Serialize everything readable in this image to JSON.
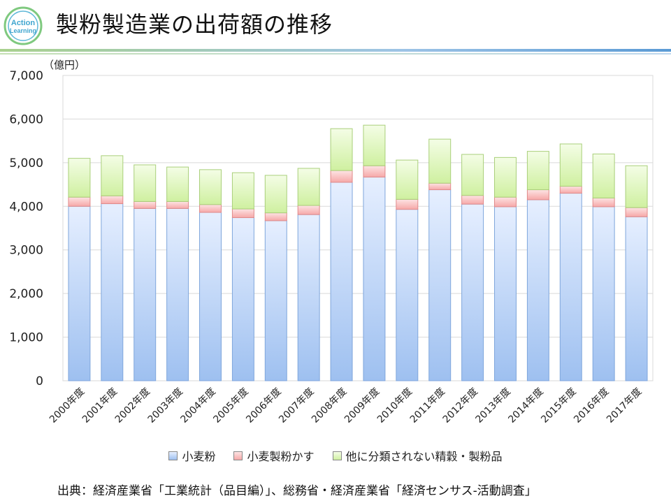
{
  "header": {
    "title": "製粉製造業の出荷額の推移",
    "logo_line1": "Action",
    "logo_line2": "Learning"
  },
  "colors": {
    "wheat": "#9ec0f0",
    "bran": "#f6a8a8",
    "other": "#cff0a0",
    "grid": "#d9d9d9",
    "axis": "#888888"
  },
  "chart_data": {
    "type": "bar",
    "stacked": true,
    "unit_label": "（億円）",
    "ylim": [
      0,
      7000
    ],
    "yticks": [
      0,
      1000,
      2000,
      3000,
      4000,
      5000,
      6000,
      7000
    ],
    "ytick_labels": [
      "0",
      "1,000",
      "2,000",
      "3,000",
      "4,000",
      "5,000",
      "6,000",
      "7,000"
    ],
    "categories": [
      "2000年度",
      "2001年度",
      "2002年度",
      "2003年度",
      "2004年度",
      "2005年度",
      "2006年度",
      "2007年度",
      "2008年度",
      "2009年度",
      "2010年度",
      "2011年度",
      "2012年度",
      "2013年度",
      "2014年度",
      "2015年度",
      "2016年度",
      "2017年度"
    ],
    "series": [
      {
        "name": "小麦粉",
        "values": [
          4000,
          4060,
          3950,
          3950,
          3860,
          3740,
          3670,
          3810,
          4550,
          4670,
          3930,
          4380,
          4050,
          3990,
          4150,
          4300,
          3990,
          3760
        ]
      },
      {
        "name": "小麦製粉かす",
        "values": [
          210,
          180,
          160,
          160,
          180,
          200,
          180,
          210,
          270,
          260,
          230,
          150,
          200,
          220,
          230,
          160,
          200,
          210
        ]
      },
      {
        "name": "他に分類されない精穀・製粉品",
        "values": [
          890,
          920,
          840,
          790,
          800,
          830,
          860,
          850,
          960,
          930,
          900,
          1010,
          940,
          910,
          880,
          970,
          1010,
          960
        ]
      }
    ],
    "legend": "bottom-center"
  },
  "footer": {
    "source": "出典：経済産業省「工業統計（品目編）」、総務省・経済産業省「経済センサス-活動調査」"
  }
}
